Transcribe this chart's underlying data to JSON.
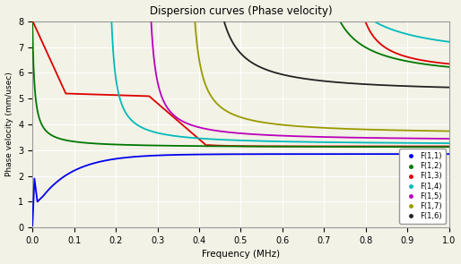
{
  "title": "Dispersion curves (Phase velocity)",
  "xlabel": "Frequency (MHz)",
  "ylabel": "Phase velocity (mm/usec)",
  "xlim": [
    0,
    1.0
  ],
  "ylim": [
    0,
    8
  ],
  "yticks": [
    0,
    1,
    2,
    3,
    4,
    5,
    6,
    7,
    8
  ],
  "xticks": [
    0,
    0.1,
    0.2,
    0.3,
    0.4,
    0.5,
    0.6,
    0.7,
    0.8,
    0.9,
    1.0
  ],
  "colors": {
    "F11": "#0000EE",
    "F12": "#007700",
    "F13": "#DD0000",
    "F14": "#00BBBB",
    "F15": "#BB00BB",
    "F17": "#999900",
    "F16": "#222222"
  },
  "background": "#F2F2E6",
  "grid_color": "#FFFFFF",
  "lw": 1.3
}
